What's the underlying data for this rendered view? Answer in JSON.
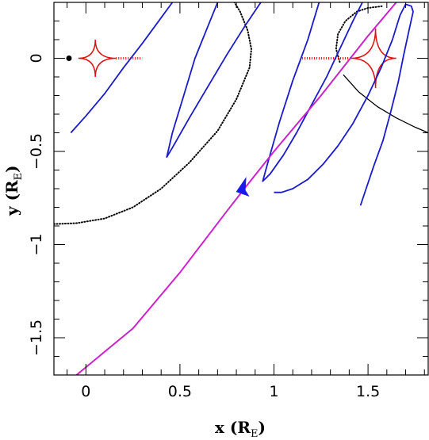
{
  "chart_data": {
    "type": "line",
    "title": "",
    "xlabel": "x (R",
    "xlabel_sub": "E",
    "xlabel_close": ")",
    "ylabel": "y (R",
    "ylabel_sub": "E",
    "ylabel_close": ")",
    "xlim": [
      -0.17,
      1.82
    ],
    "ylim": [
      -1.7,
      0.3
    ],
    "x_ticks": [
      {
        "value": 0,
        "label": "0"
      },
      {
        "value": 0.5,
        "label": "0.5"
      },
      {
        "value": 1,
        "label": "1"
      },
      {
        "value": 1.5,
        "label": "1.5"
      }
    ],
    "y_ticks": [
      {
        "value": 0,
        "label": "0"
      },
      {
        "value": -0.5,
        "label": "−0.5"
      },
      {
        "value": -1,
        "label": "−1"
      },
      {
        "value": -1.5,
        "label": "−1.5"
      }
    ],
    "grid": false,
    "colors": {
      "trajectory": "#cc22cc",
      "image_track": "#1a1acc",
      "caustic": "#dd1111",
      "critical_curve": "#000000",
      "arrow": "#1a1aee",
      "lens_star": "#000000"
    },
    "series": [
      {
        "kind": "trajectory",
        "points": [
          [
            -0.05,
            -1.7
          ],
          [
            0.25,
            -1.45
          ],
          [
            0.5,
            -1.15
          ],
          [
            0.75,
            -0.82
          ],
          [
            0.85,
            -0.69
          ],
          [
            1.0,
            -0.5
          ],
          [
            1.25,
            -0.2
          ],
          [
            1.5,
            0.12
          ],
          [
            1.65,
            0.3
          ]
        ]
      },
      {
        "kind": "image_track",
        "points": [
          [
            -0.08,
            -0.4
          ],
          [
            0.0,
            -0.31
          ],
          [
            0.1,
            -0.19
          ],
          [
            0.2,
            -0.05
          ],
          [
            0.3,
            0.08
          ],
          [
            0.38,
            0.19
          ],
          [
            0.46,
            0.3
          ]
        ]
      },
      {
        "kind": "image_track",
        "points": [
          [
            0.7,
            0.3
          ],
          [
            0.64,
            0.15
          ],
          [
            0.58,
            0.0
          ],
          [
            0.52,
            -0.2
          ],
          [
            0.46,
            -0.4
          ],
          [
            0.43,
            -0.53
          ],
          [
            0.46,
            -0.48
          ],
          [
            0.55,
            -0.32
          ],
          [
            0.65,
            -0.15
          ],
          [
            0.75,
            0.02
          ],
          [
            0.85,
            0.18
          ],
          [
            0.93,
            0.3
          ]
        ]
      },
      {
        "kind": "image_track",
        "points": [
          [
            1.24,
            0.3
          ],
          [
            1.18,
            0.1
          ],
          [
            1.1,
            -0.12
          ],
          [
            1.03,
            -0.34
          ],
          [
            0.97,
            -0.55
          ],
          [
            0.94,
            -0.66
          ],
          [
            0.98,
            -0.62
          ],
          [
            1.05,
            -0.52
          ],
          [
            1.12,
            -0.4
          ],
          [
            1.2,
            -0.25
          ],
          [
            1.28,
            -0.1
          ],
          [
            1.35,
            0.05
          ],
          [
            1.42,
            0.2
          ],
          [
            1.47,
            0.3
          ]
        ]
      },
      {
        "kind": "image_track",
        "points": [
          [
            1.46,
            -0.79
          ],
          [
            1.49,
            -0.7
          ],
          [
            1.53,
            -0.58
          ],
          [
            1.58,
            -0.44
          ],
          [
            1.62,
            -0.29
          ],
          [
            1.66,
            -0.13
          ],
          [
            1.69,
            0.02
          ],
          [
            1.72,
            0.16
          ],
          [
            1.74,
            0.25
          ],
          [
            1.73,
            0.28
          ],
          [
            1.7,
            0.29
          ],
          [
            1.67,
            0.23
          ],
          [
            1.63,
            0.1
          ],
          [
            1.57,
            -0.05
          ],
          [
            1.5,
            -0.2
          ],
          [
            1.42,
            -0.35
          ],
          [
            1.34,
            -0.47
          ],
          [
            1.26,
            -0.57
          ],
          [
            1.18,
            -0.65
          ],
          [
            1.1,
            -0.7
          ],
          [
            1.04,
            -0.72
          ],
          [
            1.0,
            -0.72
          ]
        ]
      }
    ],
    "critical_curves": [
      {
        "kind": "dotted",
        "points": [
          [
            -0.17,
            -0.89
          ],
          [
            -0.05,
            -0.885
          ],
          [
            0.1,
            -0.86
          ],
          [
            0.25,
            -0.8
          ],
          [
            0.4,
            -0.7
          ],
          [
            0.55,
            -0.56
          ],
          [
            0.7,
            -0.39
          ],
          [
            0.8,
            -0.22
          ],
          [
            0.87,
            -0.05
          ],
          [
            0.88,
            0.05
          ],
          [
            0.86,
            0.15
          ],
          [
            0.82,
            0.25
          ],
          [
            0.79,
            0.3
          ]
        ]
      },
      {
        "kind": "dotted",
        "points": [
          [
            1.35,
            -0.02
          ],
          [
            1.33,
            0.05
          ],
          [
            1.34,
            0.13
          ],
          [
            1.38,
            0.2
          ],
          [
            1.44,
            0.25
          ],
          [
            1.5,
            0.27
          ],
          [
            1.58,
            0.28
          ]
        ]
      },
      {
        "kind": "solid",
        "points": [
          [
            1.37,
            -0.09
          ],
          [
            1.45,
            -0.18
          ],
          [
            1.55,
            -0.26
          ],
          [
            1.65,
            -0.32
          ],
          [
            1.75,
            -0.37
          ],
          [
            1.82,
            -0.4
          ]
        ]
      }
    ],
    "caustics": [
      {
        "center": [
          0.05,
          0.0
        ],
        "cusps": [
          [
            -0.04,
            0.0
          ],
          [
            0.05,
            0.1
          ],
          [
            0.16,
            0.0
          ],
          [
            0.05,
            -0.1
          ]
        ],
        "fringe_to": 0.3
      },
      {
        "center": [
          1.54,
          0.0
        ],
        "cusps": [
          [
            1.41,
            0.0
          ],
          [
            1.54,
            0.16
          ],
          [
            1.65,
            0.0
          ],
          [
            1.54,
            -0.16
          ]
        ],
        "fringe_from": 1.15
      }
    ],
    "lens_star": [
      -0.09,
      0.0
    ],
    "arrow": {
      "tip": [
        0.84,
        -0.7
      ],
      "direction": [
        -1,
        -1
      ]
    }
  }
}
